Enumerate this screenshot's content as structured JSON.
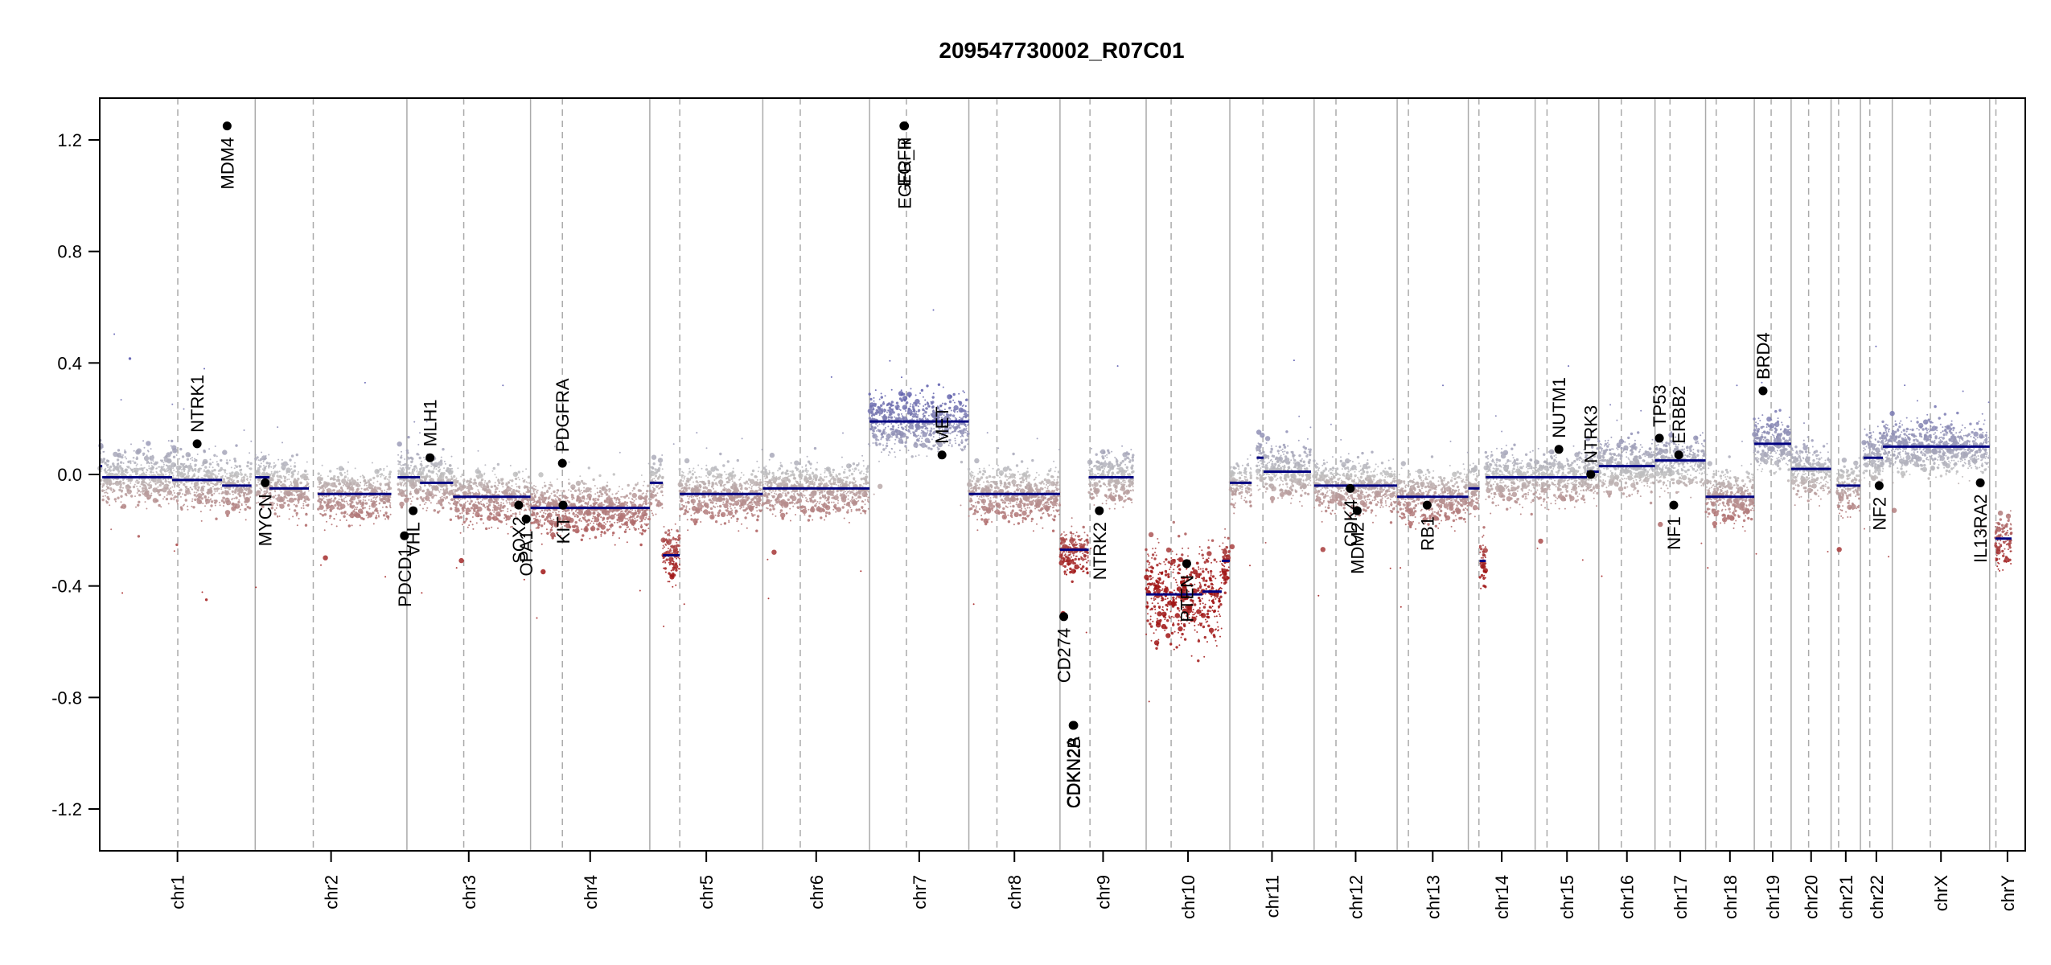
{
  "chart_data": {
    "type": "scatter",
    "title": "209547730002_R07C01",
    "xlabel": "",
    "ylabel": "",
    "ylim": [
      -1.35,
      1.35
    ],
    "yticks": [
      -1.2,
      -0.8,
      -0.4,
      0.0,
      0.4,
      0.8,
      1.2
    ],
    "ytick_labels": [
      "-1.2",
      "-0.8",
      "-0.4",
      "0.0",
      "0.4",
      "0.8",
      "1.2"
    ],
    "colors": {
      "gain": "#5555aa",
      "neutral": "#bbbbbb",
      "loss": "#aa2222",
      "segment": "#000080",
      "gene_point": "#000000",
      "grid": "#aaaaaa"
    },
    "chromosomes": [
      {
        "name": "chr1",
        "start": 0,
        "end": 249,
        "centromere": 125
      },
      {
        "name": "chr2",
        "start": 249,
        "end": 492,
        "centromere": 342
      },
      {
        "name": "chr3",
        "start": 492,
        "end": 690,
        "centromere": 583
      },
      {
        "name": "chr4",
        "start": 690,
        "end": 881,
        "centromere": 741
      },
      {
        "name": "chr5",
        "start": 881,
        "end": 1062,
        "centromere": 929
      },
      {
        "name": "chr6",
        "start": 1062,
        "end": 1233,
        "centromere": 1122
      },
      {
        "name": "chr7",
        "start": 1233,
        "end": 1392,
        "centromere": 1292
      },
      {
        "name": "chr8",
        "start": 1392,
        "end": 1538,
        "centromere": 1437
      },
      {
        "name": "chr9",
        "start": 1538,
        "end": 1676,
        "centromere": 1586
      },
      {
        "name": "chr10",
        "start": 1676,
        "end": 1810,
        "centromere": 1716
      },
      {
        "name": "chr11",
        "start": 1810,
        "end": 1945,
        "centromere": 1863
      },
      {
        "name": "chr12",
        "start": 1945,
        "end": 2078,
        "centromere": 1980
      },
      {
        "name": "chr13",
        "start": 2078,
        "end": 2192,
        "centromere": 2096
      },
      {
        "name": "chr14",
        "start": 2192,
        "end": 2299,
        "centromere": 2209
      },
      {
        "name": "chr15",
        "start": 2299,
        "end": 2401,
        "centromere": 2318
      },
      {
        "name": "chr16",
        "start": 2401,
        "end": 2491,
        "centromere": 2437
      },
      {
        "name": "chr17",
        "start": 2491,
        "end": 2572,
        "centromere": 2515
      },
      {
        "name": "chr18",
        "start": 2572,
        "end": 2650,
        "centromere": 2589
      },
      {
        "name": "chr19",
        "start": 2650,
        "end": 2709,
        "centromere": 2677
      },
      {
        "name": "chr20",
        "start": 2709,
        "end": 2773,
        "centromere": 2737
      },
      {
        "name": "chr21",
        "start": 2773,
        "end": 2820,
        "centromere": 2785
      },
      {
        "name": "chr22",
        "start": 2820,
        "end": 2871,
        "centromere": 2835
      },
      {
        "name": "chrX",
        "start": 2871,
        "end": 3027,
        "centromere": 2932
      },
      {
        "name": "chrY",
        "start": 3027,
        "end": 3084,
        "centromere": 3037
      }
    ],
    "segments": [
      {
        "x0": 0,
        "x1": 4,
        "y": 0.03
      },
      {
        "x0": 4,
        "x1": 116,
        "y": -0.01
      },
      {
        "x0": 116,
        "x1": 196,
        "y": -0.02
      },
      {
        "x0": 196,
        "x1": 243,
        "y": -0.04
      },
      {
        "x0": 249,
        "x1": 272,
        "y": -0.01
      },
      {
        "x0": 272,
        "x1": 335,
        "y": -0.05
      },
      {
        "x0": 349,
        "x1": 467,
        "y": -0.07
      },
      {
        "x0": 477,
        "x1": 513,
        "y": -0.01
      },
      {
        "x0": 513,
        "x1": 566,
        "y": -0.03
      },
      {
        "x0": 566,
        "x1": 690,
        "y": -0.08
      },
      {
        "x0": 690,
        "x1": 881,
        "y": -0.12
      },
      {
        "x0": 881,
        "x1": 902,
        "y": -0.03
      },
      {
        "x0": 902,
        "x1": 929,
        "y": -0.29
      },
      {
        "x0": 929,
        "x1": 1062,
        "y": -0.07
      },
      {
        "x0": 1062,
        "x1": 1233,
        "y": -0.05
      },
      {
        "x0": 1233,
        "x1": 1392,
        "y": 0.19
      },
      {
        "x0": 1392,
        "x1": 1538,
        "y": -0.07
      },
      {
        "x0": 1538,
        "x1": 1584,
        "y": -0.27
      },
      {
        "x0": 1584,
        "x1": 1656,
        "y": -0.01
      },
      {
        "x0": 1676,
        "x1": 1766,
        "y": -0.43
      },
      {
        "x0": 1766,
        "x1": 1797,
        "y": -0.42
      },
      {
        "x0": 1797,
        "x1": 1810,
        "y": -0.31
      },
      {
        "x0": 1810,
        "x1": 1845,
        "y": -0.03
      },
      {
        "x0": 1853,
        "x1": 1864,
        "y": 0.06
      },
      {
        "x0": 1864,
        "x1": 1940,
        "y": 0.01
      },
      {
        "x0": 1945,
        "x1": 2078,
        "y": -0.04
      },
      {
        "x0": 2078,
        "x1": 2192,
        "y": -0.08
      },
      {
        "x0": 2192,
        "x1": 2210,
        "y": -0.05
      },
      {
        "x0": 2210,
        "x1": 2220,
        "y": -0.31
      },
      {
        "x0": 2220,
        "x1": 2299,
        "y": -0.01
      },
      {
        "x0": 2299,
        "x1": 2382,
        "y": -0.01
      },
      {
        "x0": 2382,
        "x1": 2401,
        "y": 0.01
      },
      {
        "x0": 2401,
        "x1": 2491,
        "y": 0.03
      },
      {
        "x0": 2491,
        "x1": 2572,
        "y": 0.05
      },
      {
        "x0": 2572,
        "x1": 2650,
        "y": -0.08
      },
      {
        "x0": 2650,
        "x1": 2709,
        "y": 0.11
      },
      {
        "x0": 2709,
        "x1": 2773,
        "y": 0.02
      },
      {
        "x0": 2782,
        "x1": 2820,
        "y": -0.04
      },
      {
        "x0": 2825,
        "x1": 2856,
        "y": 0.06
      },
      {
        "x0": 2856,
        "x1": 3027,
        "y": 0.1
      },
      {
        "x0": 3036,
        "x1": 3062,
        "y": -0.23
      }
    ],
    "genes": [
      {
        "name": "NTRK1",
        "x": 156,
        "y": 0.11
      },
      {
        "name": "MDM4",
        "x": 204,
        "y": 1.25
      },
      {
        "name": "MYCN",
        "x": 265,
        "y": -0.03
      },
      {
        "name": "PDCD1",
        "x": 488,
        "y": -0.22
      },
      {
        "name": "VHL",
        "x": 502,
        "y": -0.13
      },
      {
        "name": "MLH1",
        "x": 529,
        "y": 0.06
      },
      {
        "name": "SOX2",
        "x": 671,
        "y": -0.11
      },
      {
        "name": "OPA1",
        "x": 683,
        "y": -0.16
      },
      {
        "name": "PDGFRA",
        "x": 741,
        "y": 0.04
      },
      {
        "name": "KIT",
        "x": 742,
        "y": -0.11
      },
      {
        "name": "EGFR",
        "x": 1288,
        "y": 1.25
      },
      {
        "name": "EGFR_Iii",
        "x": 1289,
        "y": 1.25
      },
      {
        "name": "MET",
        "x": 1349,
        "y": 0.07
      },
      {
        "name": "CD274",
        "x": 1544,
        "y": -0.51
      },
      {
        "name": "CDKN2A",
        "x": 1559,
        "y": -0.9
      },
      {
        "name": "CDKN2B",
        "x": 1560,
        "y": -0.9
      },
      {
        "name": "NTRK2",
        "x": 1601,
        "y": -0.13
      },
      {
        "name": "PTEN",
        "x": 1741,
        "y": -0.32
      },
      {
        "name": "CDK4",
        "x": 2003,
        "y": -0.05
      },
      {
        "name": "MDM2",
        "x": 2014,
        "y": -0.13
      },
      {
        "name": "RB1",
        "x": 2126,
        "y": -0.11
      },
      {
        "name": "NUTM1",
        "x": 2337,
        "y": 0.09
      },
      {
        "name": "NTRK3",
        "x": 2388,
        "y": 0.0
      },
      {
        "name": "TP53",
        "x": 2498,
        "y": 0.13
      },
      {
        "name": "NF1",
        "x": 2521,
        "y": -0.11
      },
      {
        "name": "ERBB2",
        "x": 2529,
        "y": 0.07
      },
      {
        "name": "BRD4",
        "x": 2664,
        "y": 0.3
      },
      {
        "name": "NF2",
        "x": 2850,
        "y": -0.04
      },
      {
        "name": "IL13RA2",
        "x": 3012,
        "y": -0.03
      }
    ]
  }
}
